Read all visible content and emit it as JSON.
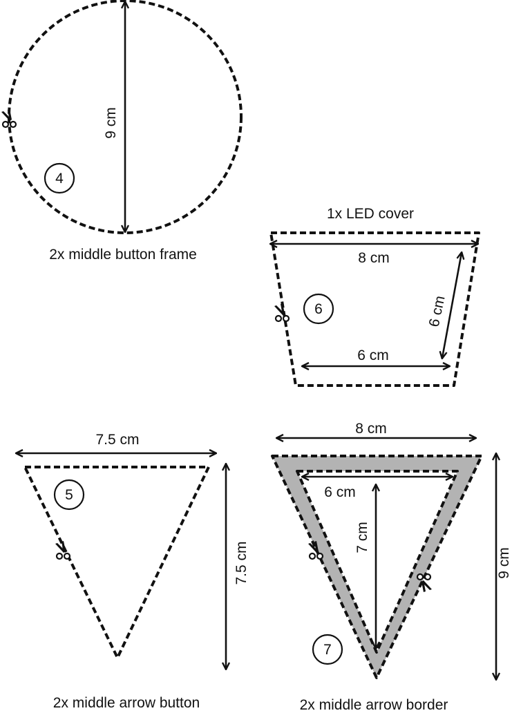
{
  "pieces": {
    "p4": {
      "caption": "2x middle button frame",
      "number": "4",
      "height_label": "9 cm"
    },
    "p6": {
      "caption": "1x  LED cover",
      "number": "6",
      "top_label": "8 cm",
      "side_label": "6 cm",
      "bottom_label": "6 cm"
    },
    "p5": {
      "caption": "2x middle arrow button",
      "number": "5",
      "width_label": "7.5 cm",
      "height_label": "7.5 cm"
    },
    "p7": {
      "caption": "2x middle arrow border",
      "number": "7",
      "outer_width_label": "8 cm",
      "inner_width_label": "6 cm",
      "inner_height_label": "7 cm",
      "outer_height_label": "9 cm",
      "border_color": "#b3b3b3"
    }
  },
  "icons": [
    "scissors-icon"
  ]
}
